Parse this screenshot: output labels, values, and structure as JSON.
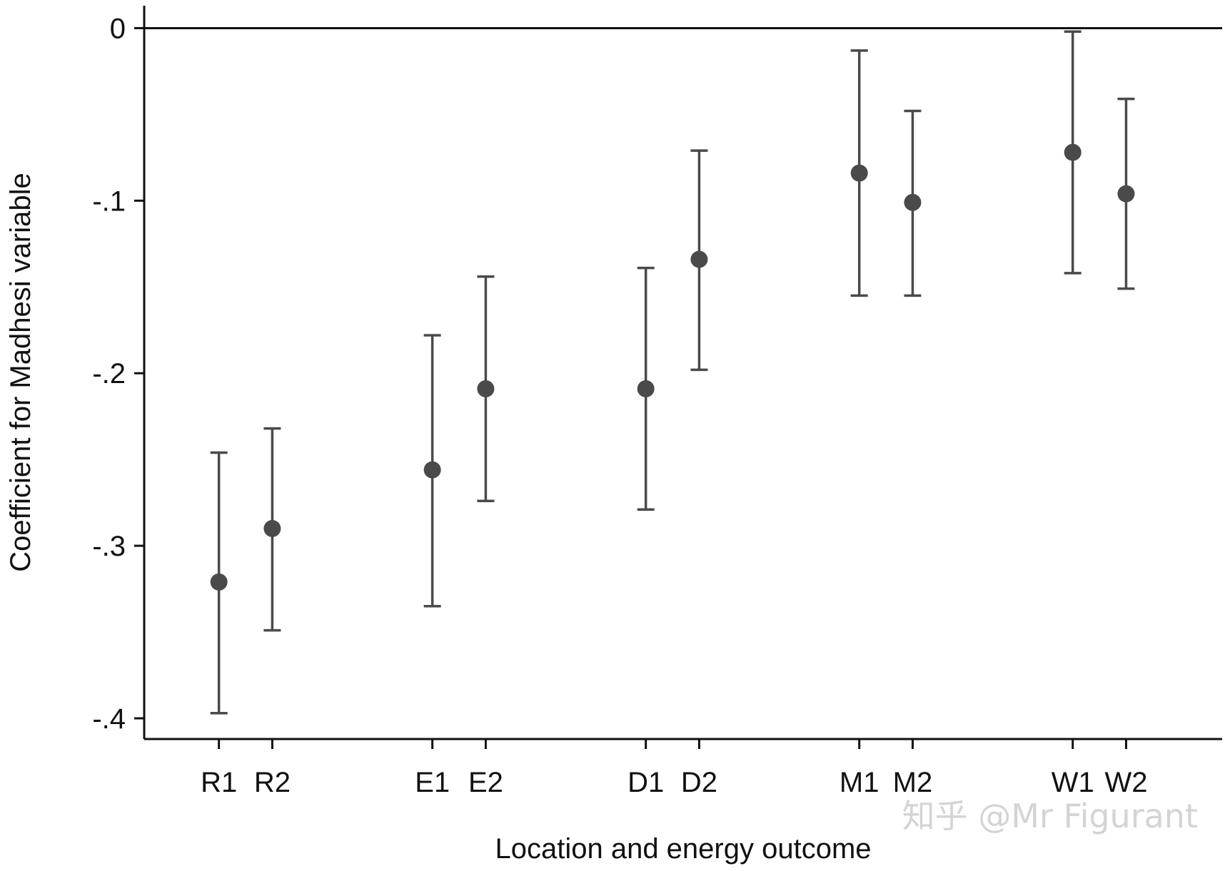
{
  "chart_data": {
    "type": "scatter",
    "subtype": "coefficient plot with confidence intervals",
    "xlabel": "Location and energy outcome",
    "ylabel": "Coefficient for Madhesi variable",
    "ylim": [
      -0.412,
      0.013
    ],
    "yticks": [
      0,
      -0.1,
      -0.2,
      -0.3,
      -0.4
    ],
    "ytick_labels": [
      "0",
      "-.1",
      "-.2",
      "-.3",
      "-.4"
    ],
    "reference_line": 0,
    "grid": false,
    "legend": "none",
    "marker_color": "#4a4a4a",
    "errorbar_color": "#4a4a4a",
    "points": [
      {
        "label": "R1",
        "x": 1,
        "estimate": -0.321,
        "ci_low": -0.397,
        "ci_high": -0.246
      },
      {
        "label": "R2",
        "x": 2,
        "estimate": -0.29,
        "ci_low": -0.349,
        "ci_high": -0.232
      },
      {
        "label": "E1",
        "x": 5,
        "estimate": -0.256,
        "ci_low": -0.335,
        "ci_high": -0.178
      },
      {
        "label": "E2",
        "x": 6,
        "estimate": -0.209,
        "ci_low": -0.274,
        "ci_high": -0.144
      },
      {
        "label": "D1",
        "x": 9,
        "estimate": -0.209,
        "ci_low": -0.279,
        "ci_high": -0.139
      },
      {
        "label": "D2",
        "x": 10,
        "estimate": -0.134,
        "ci_low": -0.198,
        "ci_high": -0.071
      },
      {
        "label": "M1",
        "x": 13,
        "estimate": -0.084,
        "ci_low": -0.155,
        "ci_high": -0.013
      },
      {
        "label": "M2",
        "x": 14,
        "estimate": -0.101,
        "ci_low": -0.155,
        "ci_high": -0.048
      },
      {
        "label": "W1",
        "x": 17,
        "estimate": -0.072,
        "ci_low": -0.142,
        "ci_high": -0.002
      },
      {
        "label": "W2",
        "x": 18,
        "estimate": -0.096,
        "ci_low": -0.151,
        "ci_high": -0.041
      }
    ],
    "xlim": [
      -0.4,
      19.8
    ]
  },
  "watermark": "知乎 @Mr Figurant"
}
